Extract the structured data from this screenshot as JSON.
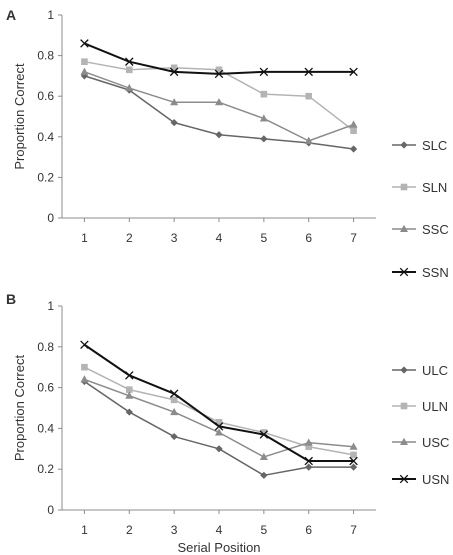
{
  "chart_data": [
    {
      "panel_label": "A",
      "type": "line",
      "ylabel": "Proportion Correct",
      "xlabel": "",
      "x": [
        1,
        2,
        3,
        4,
        5,
        6,
        7
      ],
      "xlim": [
        0.5,
        7.5
      ],
      "ylim": [
        0,
        1
      ],
      "yticks": [
        "0",
        "0.2",
        "0.4",
        "0.6",
        "0.8",
        "1"
      ],
      "yticks_values": [
        0,
        0.2,
        0.4,
        0.6,
        0.8,
        1
      ],
      "xticks": [
        "1",
        "2",
        "3",
        "4",
        "5",
        "6",
        "7"
      ],
      "legend_position": "right",
      "grid": false,
      "series": [
        {
          "name": "SLC",
          "color": "#666666",
          "marker": "diamond",
          "width": 1.5,
          "values": [
            0.7,
            0.63,
            0.47,
            0.41,
            0.39,
            0.37,
            0.34
          ]
        },
        {
          "name": "SLN",
          "color": "#b4b4b4",
          "marker": "square",
          "width": 1.5,
          "values": [
            0.77,
            0.73,
            0.74,
            0.73,
            0.61,
            0.6,
            0.43
          ]
        },
        {
          "name": "SSC",
          "color": "#8c8c8c",
          "marker": "triangle",
          "width": 1.5,
          "values": [
            0.72,
            0.64,
            0.57,
            0.57,
            0.49,
            0.38,
            0.46
          ]
        },
        {
          "name": "SSN",
          "color": "#111111",
          "marker": "x",
          "width": 2,
          "values": [
            0.86,
            0.77,
            0.72,
            0.71,
            0.72,
            0.72,
            0.72
          ]
        }
      ]
    },
    {
      "panel_label": "B",
      "type": "line",
      "ylabel": "Proportion Correct",
      "xlabel": "Serial Position",
      "x": [
        1,
        2,
        3,
        4,
        5,
        6,
        7
      ],
      "xlim": [
        0.5,
        7.5
      ],
      "ylim": [
        0,
        1
      ],
      "yticks": [
        "0",
        "0.2",
        "0.4",
        "0.6",
        "0.8",
        "1"
      ],
      "yticks_values": [
        0,
        0.2,
        0.4,
        0.6,
        0.8,
        1
      ],
      "xticks": [
        "1",
        "2",
        "3",
        "4",
        "5",
        "6",
        "7"
      ],
      "legend_position": "right",
      "grid": false,
      "series": [
        {
          "name": "ULC",
          "color": "#666666",
          "marker": "diamond",
          "width": 1.5,
          "values": [
            0.63,
            0.48,
            0.36,
            0.3,
            0.17,
            0.21,
            0.21
          ]
        },
        {
          "name": "ULN",
          "color": "#b4b4b4",
          "marker": "square",
          "width": 1.5,
          "values": [
            0.7,
            0.59,
            0.54,
            0.43,
            0.38,
            0.31,
            0.27
          ]
        },
        {
          "name": "USC",
          "color": "#8c8c8c",
          "marker": "triangle",
          "width": 1.5,
          "values": [
            0.64,
            0.56,
            0.48,
            0.38,
            0.26,
            0.33,
            0.31
          ]
        },
        {
          "name": "USN",
          "color": "#111111",
          "marker": "x",
          "width": 2,
          "values": [
            0.81,
            0.66,
            0.57,
            0.41,
            0.37,
            0.24,
            0.24
          ]
        }
      ]
    }
  ]
}
